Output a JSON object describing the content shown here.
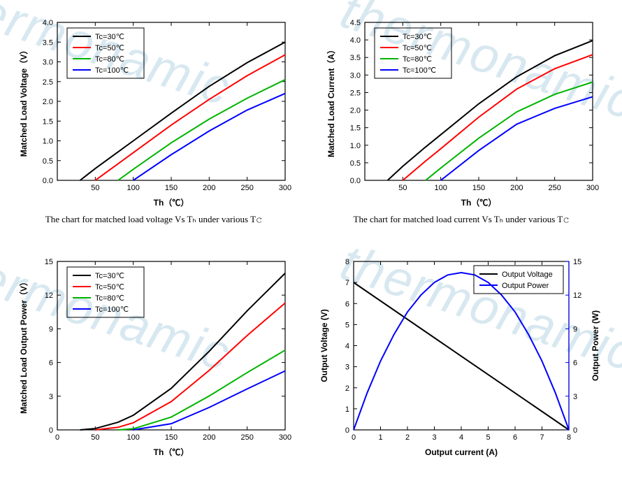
{
  "watermark_text": "thermonamic",
  "legend_common": {
    "items": [
      "Tc=30℃",
      "Tc=50℃",
      "Tc=80℃",
      "Tc=100℃"
    ],
    "colors": [
      "#000000",
      "#ff0000",
      "#00b400",
      "#0000ff"
    ]
  },
  "chart_voltage": {
    "type": "line",
    "xlabel": "Th（℃）",
    "ylabel": "Matched Load Voltage（V）",
    "caption": "The chart for matched load voltage Vs Tₕ under various T𝚌",
    "xlim": [
      0,
      300
    ],
    "xticks": [
      50,
      100,
      150,
      200,
      250,
      300
    ],
    "ylim": [
      0,
      4.0
    ],
    "yticks": [
      0.0,
      0.5,
      1.0,
      1.5,
      2.0,
      2.5,
      3.0,
      3.5,
      4.0
    ],
    "series": [
      {
        "x": [
          30,
          50,
          80,
          100,
          150,
          200,
          250,
          300
        ],
        "y": [
          0,
          0.3,
          0.72,
          1.0,
          1.7,
          2.38,
          2.98,
          3.5
        ]
      },
      {
        "x": [
          50,
          80,
          100,
          150,
          200,
          250,
          300
        ],
        "y": [
          0,
          0.42,
          0.7,
          1.4,
          2.05,
          2.65,
          3.18
        ]
      },
      {
        "x": [
          80,
          100,
          150,
          200,
          250,
          300
        ],
        "y": [
          0,
          0.28,
          0.95,
          1.55,
          2.08,
          2.55
        ]
      },
      {
        "x": [
          100,
          150,
          200,
          250,
          300
        ],
        "y": [
          0,
          0.65,
          1.25,
          1.78,
          2.2
        ]
      }
    ]
  },
  "chart_current": {
    "type": "line",
    "xlabel": "Th（℃）",
    "ylabel": "Matched Load Current（A）",
    "caption": "The chart for matched load current  Vs Tₕ under various T𝚌",
    "xlim": [
      0,
      300
    ],
    "xticks": [
      50,
      100,
      150,
      200,
      250,
      300
    ],
    "ylim": [
      0,
      4.5
    ],
    "yticks": [
      0.0,
      0.5,
      1.0,
      1.5,
      2.0,
      2.5,
      3.0,
      3.5,
      4.0,
      4.5
    ],
    "series": [
      {
        "x": [
          30,
          50,
          80,
          100,
          150,
          200,
          250,
          300
        ],
        "y": [
          0,
          0.4,
          0.95,
          1.3,
          2.18,
          2.95,
          3.55,
          3.98
        ]
      },
      {
        "x": [
          50,
          80,
          100,
          150,
          200,
          250,
          300
        ],
        "y": [
          0,
          0.55,
          0.9,
          1.8,
          2.6,
          3.18,
          3.58
        ]
      },
      {
        "x": [
          80,
          100,
          150,
          200,
          250,
          300
        ],
        "y": [
          0,
          0.35,
          1.2,
          1.95,
          2.45,
          2.8
        ]
      },
      {
        "x": [
          100,
          150,
          200,
          250,
          300
        ],
        "y": [
          0,
          0.85,
          1.6,
          2.05,
          2.38
        ]
      }
    ]
  },
  "chart_power": {
    "type": "line",
    "xlabel": "Th（℃）",
    "ylabel": "Matched Load Output Power（V）",
    "xlim": [
      0,
      300
    ],
    "xticks": [
      0,
      50,
      100,
      150,
      200,
      250,
      300
    ],
    "ylim": [
      0,
      15
    ],
    "yticks": [
      0,
      3,
      6,
      9,
      12,
      15
    ],
    "series": [
      {
        "x": [
          30,
          50,
          80,
          100,
          150,
          200,
          250,
          300
        ],
        "y": [
          0,
          0.12,
          0.68,
          1.3,
          3.7,
          7.0,
          10.6,
          13.95
        ]
      },
      {
        "x": [
          50,
          80,
          100,
          150,
          200,
          250,
          300
        ],
        "y": [
          0,
          0.23,
          0.63,
          2.52,
          5.3,
          8.4,
          11.3
        ]
      },
      {
        "x": [
          80,
          100,
          150,
          200,
          250,
          300
        ],
        "y": [
          0,
          0.1,
          1.14,
          3.02,
          5.1,
          7.1
        ]
      },
      {
        "x": [
          100,
          150,
          200,
          250,
          300
        ],
        "y": [
          0,
          0.55,
          2.0,
          3.65,
          5.25
        ]
      }
    ]
  },
  "chart_output": {
    "type": "dual-axis",
    "xlabel": "Output current (A)",
    "ylabel_left": "Output Voltage (V)",
    "ylabel_right": "Output Power (W)",
    "xlim": [
      0,
      8
    ],
    "xticks": [
      0,
      1,
      2,
      3,
      4,
      5,
      6,
      7,
      8
    ],
    "ylim_left": [
      0,
      8
    ],
    "yticks_left": [
      0,
      1,
      2,
      3,
      4,
      5,
      6,
      7,
      8
    ],
    "ylim_right": [
      0,
      15
    ],
    "yticks_right": [
      0,
      3,
      6,
      9,
      12,
      15
    ],
    "legend": {
      "items": [
        "Output Voltage",
        "Output Power"
      ],
      "colors": [
        "#000000",
        "#0000ff"
      ]
    },
    "voltage": {
      "color": "#000000",
      "x": [
        0,
        8
      ],
      "y": [
        7,
        0
      ]
    },
    "power": {
      "color": "#0000ff",
      "x": [
        0,
        0.5,
        1,
        1.5,
        2,
        2.5,
        3,
        3.5,
        4,
        4.5,
        5,
        5.5,
        6,
        6.5,
        7,
        7.5,
        8
      ],
      "y": [
        0,
        3.28,
        6.13,
        8.5,
        10.5,
        12.0,
        13.13,
        13.8,
        14.0,
        13.8,
        13.13,
        12.0,
        10.5,
        8.5,
        6.13,
        3.28,
        0
      ]
    }
  },
  "style": {
    "line_width": 2,
    "background_color": "#ffffff",
    "axis_color": "#000000",
    "caption_font": "Times New Roman",
    "caption_fontsize": 13,
    "tick_fontsize": 11,
    "axis_title_fontsize": 12,
    "watermark_color": "#d8e8f0"
  }
}
